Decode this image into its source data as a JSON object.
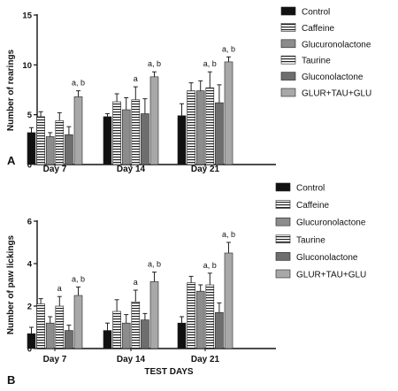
{
  "colors": {
    "control": "#111111",
    "caffeine_stripe": "#ffffff",
    "glucuronolactone": "#8c8c8c",
    "taurine_stripe": "#ffffff",
    "gluconolactone": "#6e6e6e",
    "combo": "#a8a8a8",
    "axis": "#111111"
  },
  "chart_data": [
    {
      "type": "bar",
      "panel_label": "A",
      "categories": [
        "Day 7",
        "Day 14",
        "Day 21"
      ],
      "ylabel": "Number of rearings",
      "xlabel": "",
      "ylim": [
        0,
        15
      ],
      "yticks": [
        0,
        5,
        10,
        15
      ],
      "legend_placement": "right",
      "series": [
        {
          "name": "Control",
          "key": "control",
          "values": [
            3.2,
            4.8,
            4.9
          ],
          "errors": [
            0.5,
            0.3,
            1.2
          ]
        },
        {
          "name": "Caffeine",
          "key": "caffeine",
          "values": [
            4.8,
            6.3,
            7.4
          ],
          "errors": [
            0.5,
            0.8,
            0.8
          ]
        },
        {
          "name": "Glucuronolactone",
          "key": "glucuronolactone",
          "values": [
            2.8,
            5.5,
            7.4
          ],
          "errors": [
            0.4,
            1.2,
            1.0
          ]
        },
        {
          "name": "Taurine",
          "key": "taurine",
          "values": [
            4.4,
            6.5,
            7.7
          ],
          "errors": [
            0.8,
            1.3,
            1.6
          ]
        },
        {
          "name": "Gluconolactone",
          "key": "gluconolactone",
          "values": [
            3.0,
            5.1,
            6.2
          ],
          "errors": [
            0.8,
            1.5,
            1.8
          ]
        },
        {
          "name": "GLUR+TAU+GLU",
          "key": "combo",
          "values": [
            6.8,
            8.8,
            10.3
          ],
          "errors": [
            0.6,
            0.5,
            0.5
          ]
        }
      ],
      "annotations": [
        {
          "category": 0,
          "series": 5,
          "text": "a, b"
        },
        {
          "category": 1,
          "series": 3,
          "text": "a"
        },
        {
          "category": 1,
          "series": 5,
          "text": "a, b"
        },
        {
          "category": 2,
          "series": 3,
          "text": "a, b"
        },
        {
          "category": 2,
          "series": 5,
          "text": "a, b"
        }
      ]
    },
    {
      "type": "bar",
      "panel_label": "B",
      "categories": [
        "Day 7",
        "Day 14",
        "Day 21"
      ],
      "ylabel": "Number of paw lickings",
      "xlabel": "TEST DAYS",
      "ylim": [
        0,
        6
      ],
      "yticks": [
        0,
        2,
        4,
        6
      ],
      "legend_placement": "right",
      "series": [
        {
          "name": "Control",
          "key": "control",
          "values": [
            0.7,
            0.85,
            1.2
          ],
          "errors": [
            0.3,
            0.35,
            0.3
          ]
        },
        {
          "name": "Caffeine",
          "key": "caffeine",
          "values": [
            2.1,
            1.75,
            3.1
          ],
          "errors": [
            0.25,
            0.55,
            0.3
          ]
        },
        {
          "name": "Glucuronolactone",
          "key": "glucuronolactone",
          "values": [
            1.2,
            1.2,
            2.7
          ],
          "errors": [
            0.3,
            0.4,
            0.3
          ]
        },
        {
          "name": "Taurine",
          "key": "taurine",
          "values": [
            2.0,
            2.2,
            3.0
          ],
          "errors": [
            0.45,
            0.55,
            0.55
          ]
        },
        {
          "name": "Gluconolactone",
          "key": "gluconolactone",
          "values": [
            0.85,
            1.35,
            1.7
          ],
          "errors": [
            0.25,
            0.3,
            0.45
          ]
        },
        {
          "name": "GLUR+TAU+GLU",
          "key": "combo",
          "values": [
            2.5,
            3.15,
            4.5
          ],
          "errors": [
            0.4,
            0.45,
            0.5
          ]
        }
      ],
      "annotations": [
        {
          "category": 0,
          "series": 3,
          "text": "a"
        },
        {
          "category": 0,
          "series": 5,
          "text": "a, b"
        },
        {
          "category": 1,
          "series": 3,
          "text": "a"
        },
        {
          "category": 1,
          "series": 5,
          "text": "a, b"
        },
        {
          "category": 2,
          "series": 3,
          "text": "a, b"
        },
        {
          "category": 2,
          "series": 5,
          "text": "a, b"
        }
      ]
    }
  ]
}
